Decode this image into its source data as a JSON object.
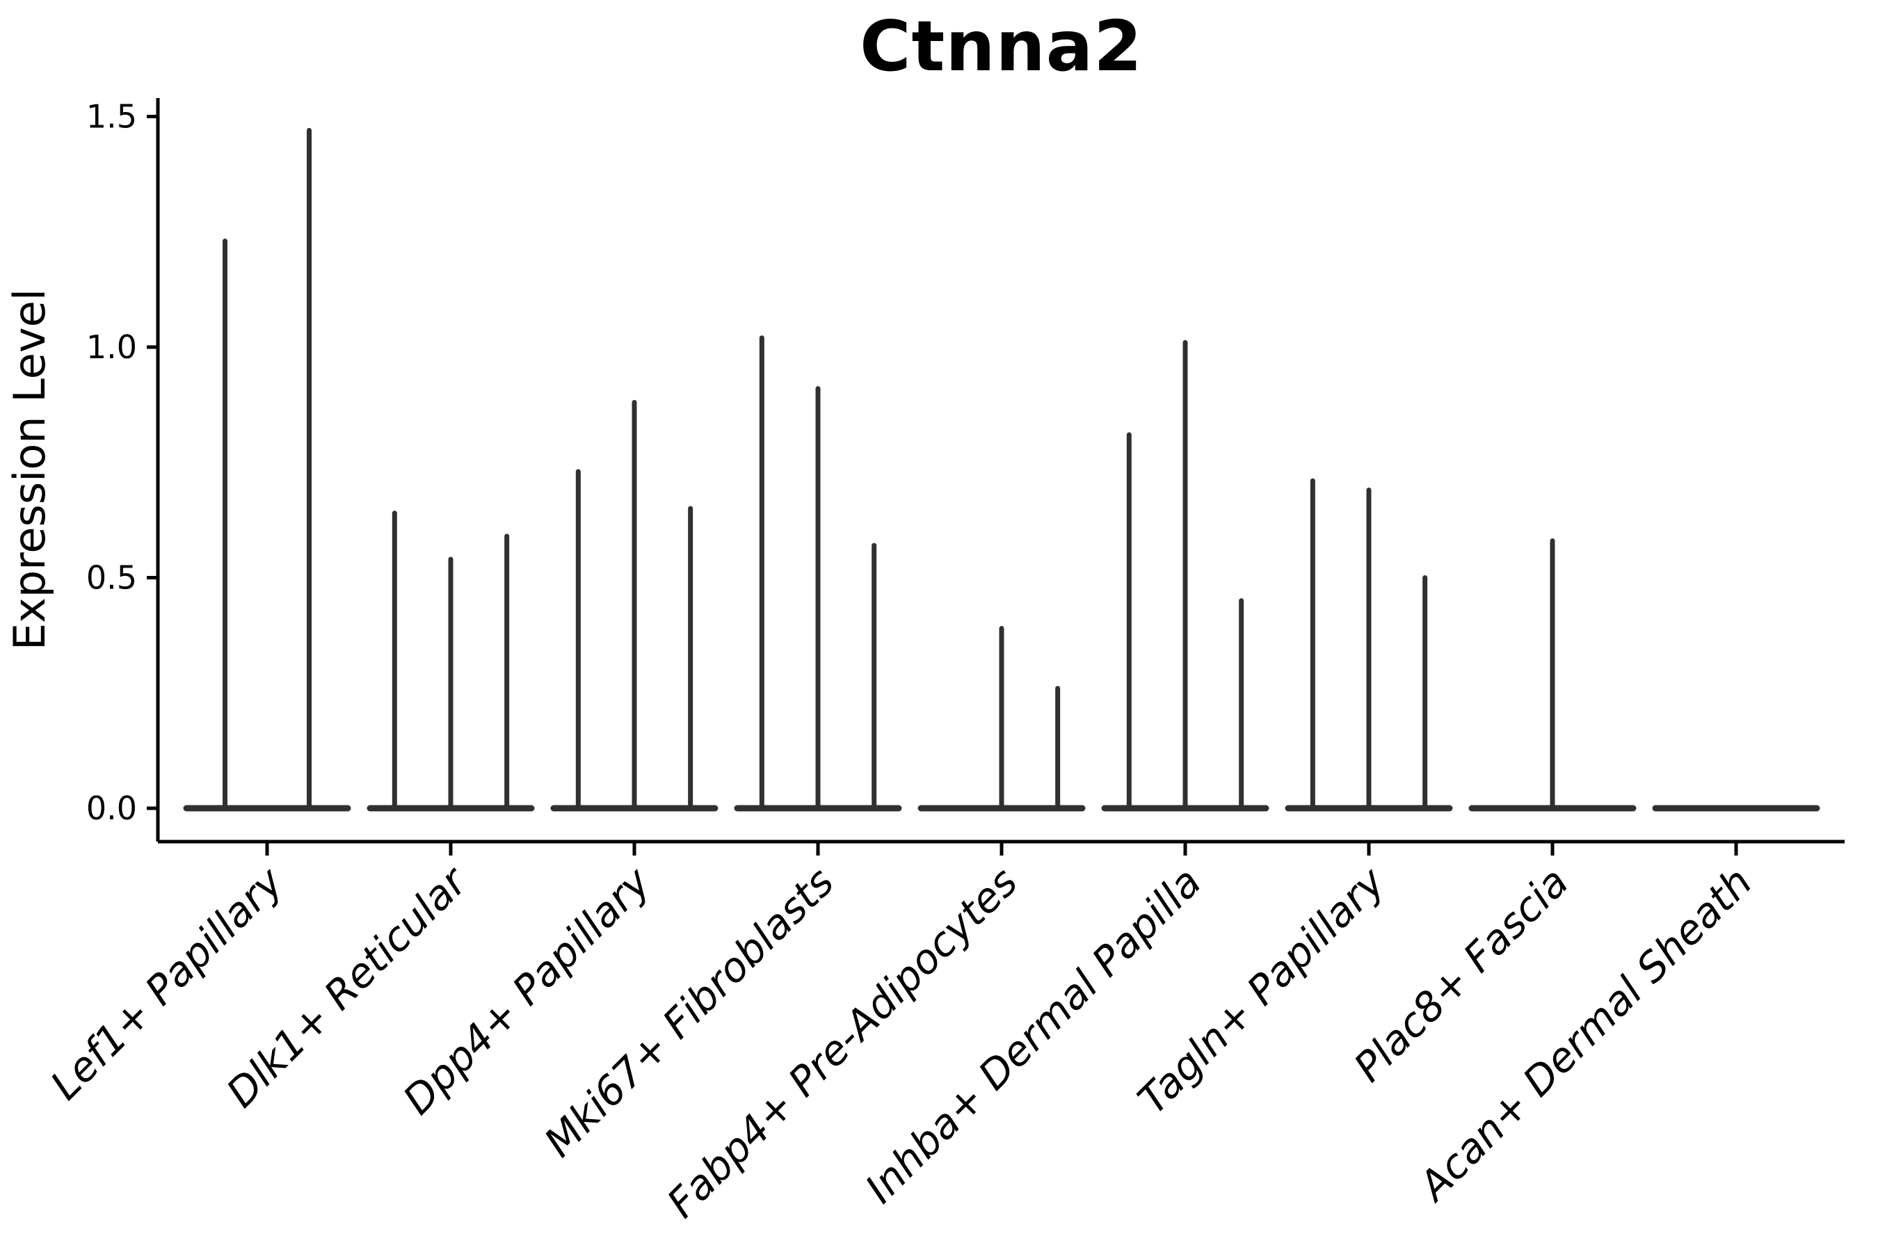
{
  "chart_data": {
    "type": "violin",
    "title": "Ctnna2",
    "xlabel": "",
    "ylabel": "Expression Level",
    "ylim": [
      0,
      1.55
    ],
    "yticks": [
      "0.0",
      "0.5",
      "1.0",
      "1.5"
    ],
    "grid": false,
    "legend": "none",
    "categories": [
      {
        "label": "Lef1+ Papillary",
        "violin_maxima": [
          1.23,
          1.47
        ]
      },
      {
        "label": "Dlk1+ Reticular",
        "violin_maxima": [
          0.64,
          0.54,
          0.59
        ]
      },
      {
        "label": "Dpp4+ Papillary",
        "violin_maxima": [
          0.73,
          0.88,
          0.65
        ]
      },
      {
        "label": "Mki67+ Fibroblasts",
        "violin_maxima": [
          1.02,
          0.91,
          0.57
        ]
      },
      {
        "label": "Fabp4+ Pre-Adipocytes",
        "violin_maxima": [
          0,
          0.39,
          0.26
        ]
      },
      {
        "label": "Inhba+ Dermal Papilla",
        "violin_maxima": [
          0.81,
          1.01,
          0.45
        ]
      },
      {
        "label": "Tagln+ Papillary",
        "violin_maxima": [
          0.71,
          0.69,
          0.5
        ]
      },
      {
        "label": "Plac8+ Fascia",
        "violin_maxima": [
          0,
          0.58,
          0
        ]
      },
      {
        "label": "Acan+ Dermal Sheath",
        "violin_maxima": [
          0,
          0,
          0
        ]
      }
    ],
    "colors": {
      "violin_line": "#303030",
      "axis": "#000000",
      "text": "#000000",
      "background": "#ffffff"
    }
  }
}
